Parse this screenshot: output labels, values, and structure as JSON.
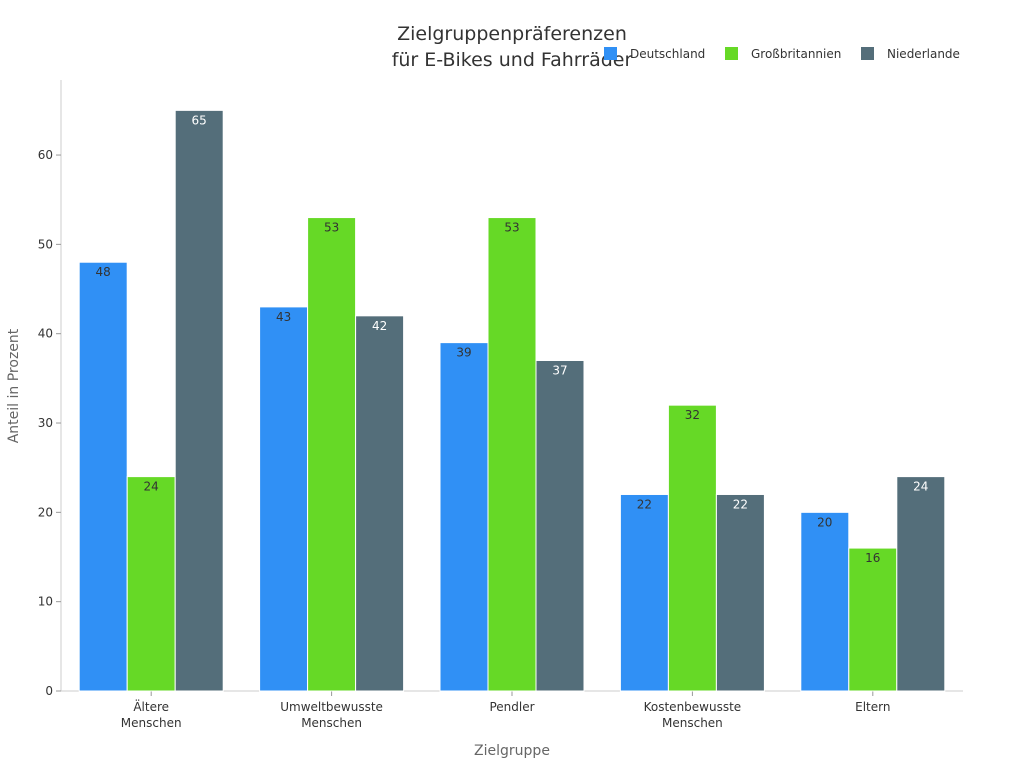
{
  "chart_data": {
    "type": "bar",
    "title_lines": [
      "Zielgruppenpräferenzen",
      "für E-Bikes und Fahrräder"
    ],
    "xlabel": "Zielgruppe",
    "ylabel": "Anteil in Prozent",
    "categories": [
      [
        "Ältere",
        "Menschen"
      ],
      [
        "Umweltbewusste",
        "Menschen"
      ],
      [
        "Pendler"
      ],
      [
        "Kostenbewusste",
        "Menschen"
      ],
      [
        "Eltern"
      ]
    ],
    "series": [
      {
        "name": "Deutschland",
        "color": "#3090f5",
        "label_color": "#333333",
        "values": [
          48,
          43,
          39,
          22,
          20
        ]
      },
      {
        "name": "Großbritannien",
        "color": "#66d926",
        "label_color": "#333333",
        "values": [
          24,
          53,
          53,
          32,
          16
        ]
      },
      {
        "name": "Niederlande",
        "color": "#546e7a",
        "label_color": "#ffffff",
        "values": [
          65,
          42,
          37,
          22,
          24
        ]
      }
    ],
    "ylim": [
      0,
      68.4
    ],
    "yticks": [
      0,
      10,
      20,
      30,
      40,
      50,
      60
    ],
    "legend_position": "top-right",
    "grid": false
  }
}
